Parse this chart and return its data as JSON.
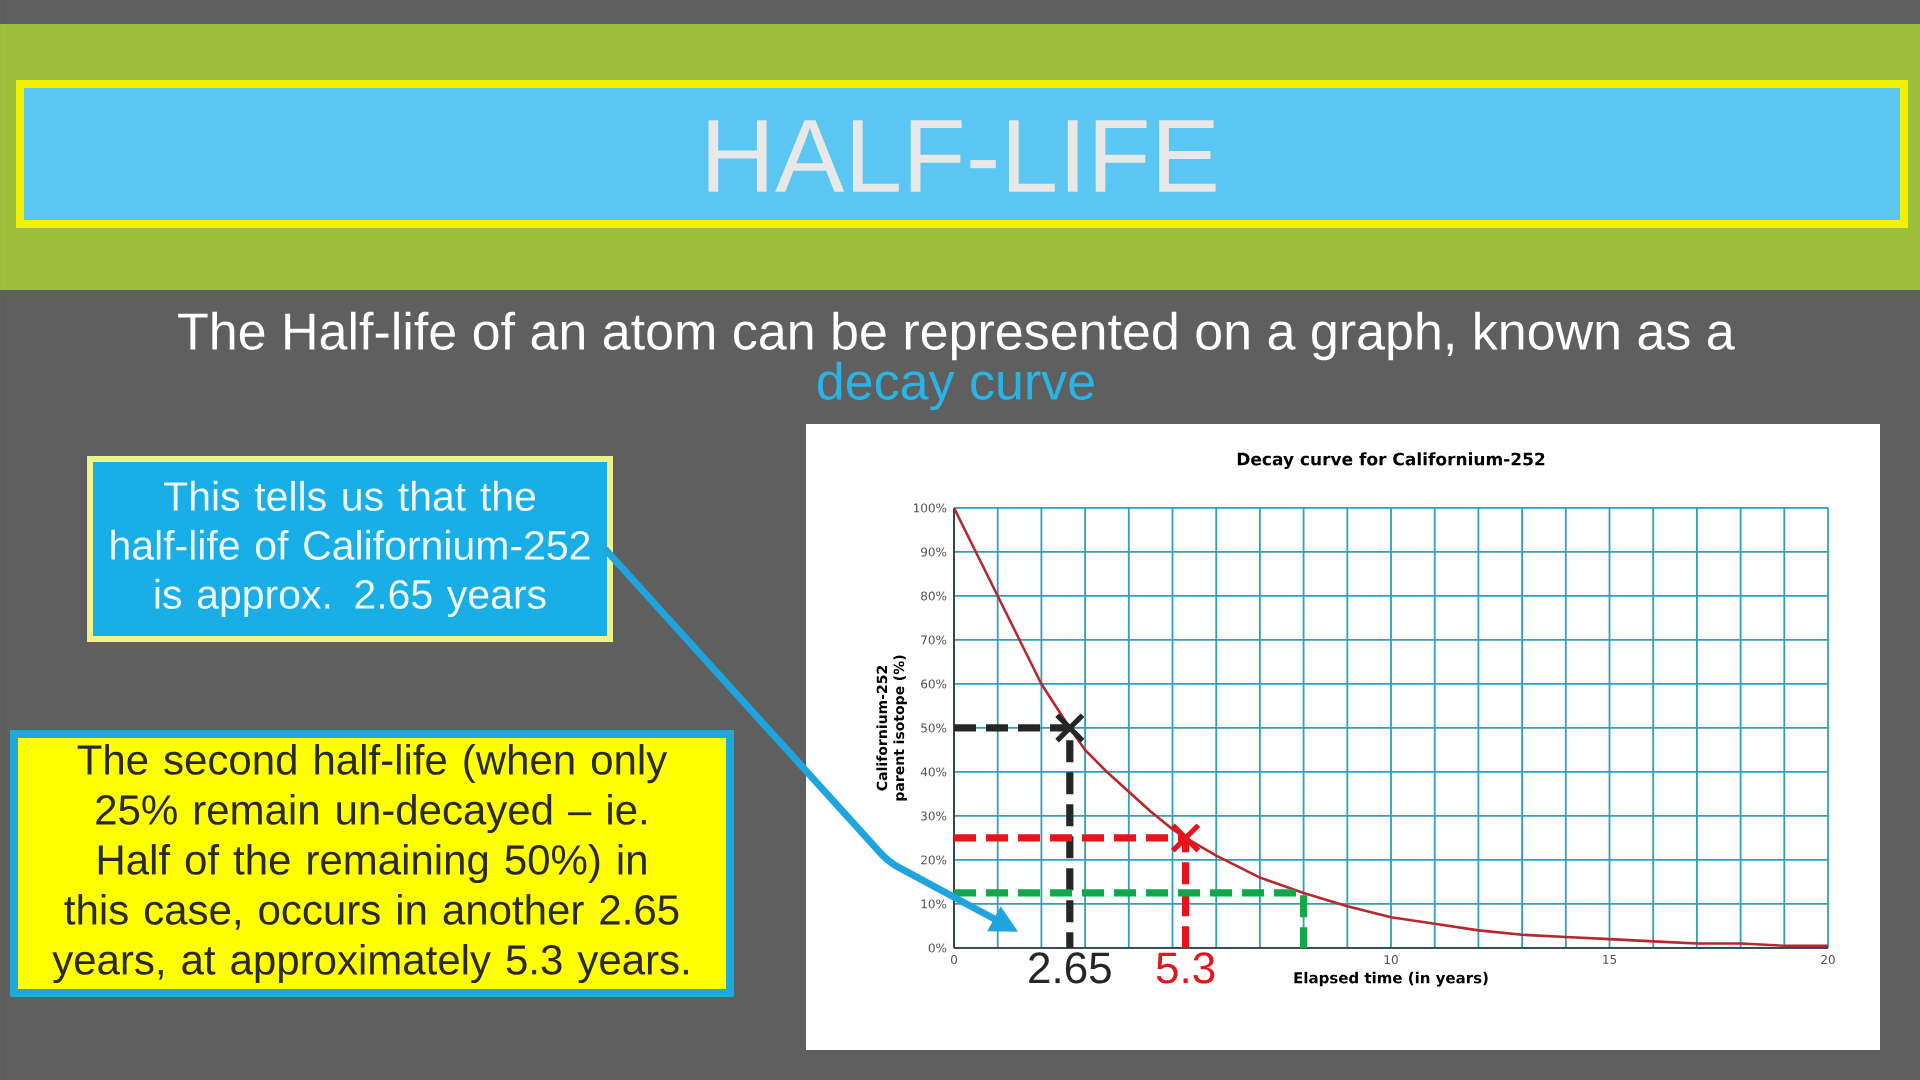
{
  "chart_data": {
    "type": "line",
    "title": "Decay curve for Californium-252",
    "xlabel": "Elapsed time (in years)",
    "ylabel": "Californium-252 parent isotope (%)",
    "xlim": [
      0,
      20
    ],
    "ylim": [
      0,
      100
    ],
    "xticks": [
      0,
      {
        "value": 1,
        "label": null
      },
      {
        "value": 2,
        "label": null
      },
      {
        "value": 3,
        "label": null
      },
      {
        "value": 4,
        "label": null
      },
      {
        "value": 5,
        "label": null
      },
      {
        "value": 6,
        "label": null
      },
      {
        "value": 7,
        "label": null
      },
      {
        "value": 8,
        "label": null
      },
      {
        "value": 9,
        "label": null
      },
      10,
      {
        "value": 11,
        "label": null
      },
      {
        "value": 12,
        "label": null
      },
      {
        "value": 13,
        "label": null
      },
      {
        "value": 14,
        "label": null
      },
      15,
      {
        "value": 16,
        "label": null
      },
      {
        "value": 17,
        "label": null
      },
      {
        "value": 18,
        "label": null
      },
      {
        "value": 19,
        "label": null
      },
      20
    ],
    "yticks": [
      {
        "value": 0,
        "label": "0%"
      },
      {
        "value": 10,
        "label": "10%"
      },
      {
        "value": 20,
        "label": "20%"
      },
      {
        "value": 30,
        "label": "30%"
      },
      {
        "value": 40,
        "label": "40%"
      },
      {
        "value": 50,
        "label": "50%"
      },
      {
        "value": 60,
        "label": "60%"
      },
      {
        "value": 70,
        "label": "70%"
      },
      {
        "value": 80,
        "label": "80%"
      },
      {
        "value": 90,
        "label": "90%"
      },
      {
        "value": 100,
        "label": "100%"
      }
    ],
    "grid": true,
    "series": [
      {
        "color": "#b8272c",
        "x": [
          0,
          0.5,
          1,
          1.5,
          2,
          2.65,
          3,
          3.5,
          4,
          4.5,
          5,
          5.3,
          6,
          7,
          8,
          9,
          10,
          11,
          12,
          13,
          14,
          15,
          16,
          17,
          18,
          19,
          20
        ],
        "values": [
          100,
          90,
          80,
          70,
          60,
          50,
          45,
          40,
          35.5,
          31,
          27,
          25,
          21,
          16,
          12.5,
          9.5,
          7,
          5.5,
          4,
          3,
          2.5,
          2,
          1.5,
          1,
          1,
          0.5,
          0.5
        ]
      },
      {
        "color": "#262626",
        "line_style": "dashed",
        "x": [
          0,
          2.65,
          2.65
        ],
        "values": [
          50,
          50,
          0
        ]
      },
      {
        "color": "#e8141c",
        "line_style": "dashed",
        "x": [
          0,
          5.3,
          5.3
        ],
        "values": [
          25,
          25,
          0
        ]
      },
      {
        "color": "#12a84a",
        "line_style": "dashed",
        "x": [
          0,
          8,
          8
        ],
        "values": [
          12.5,
          12.5,
          0
        ]
      },
      {
        "type": "scatter",
        "color": "#262626",
        "marker": "cross",
        "x": [
          2.65
        ],
        "values": [
          50
        ]
      },
      {
        "type": "scatter",
        "color": "#e8141c",
        "marker": "cross",
        "x": [
          5.3
        ],
        "values": [
          25
        ]
      }
    ],
    "annotations": [
      "HALF-LIFE",
      "The Half-life of an atom can be represented on a graph, known as a",
      "decay curve",
      "This tells us that the half-life of Californium-252 is approx. 2.65 years",
      "The second half-life (when only 25% remain un-decayed – ie. Half of the remaining 50%) in this case, occurs in another 2.65 years, at approximately 5.3 years.",
      {
        "text": "2.65",
        "x": 2.65,
        "y": 0
      },
      {
        "text": "5.3",
        "x": 5.3,
        "y": 0
      }
    ]
  }
}
